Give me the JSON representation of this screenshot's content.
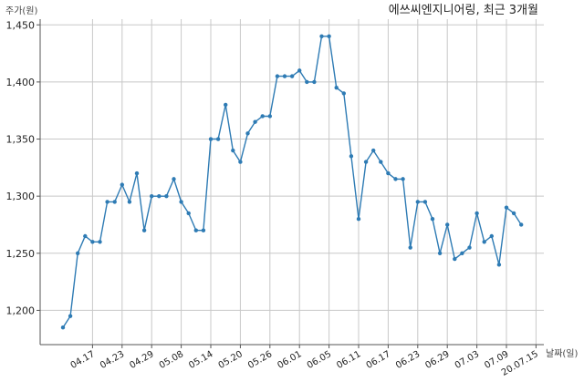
{
  "chart_data": {
    "type": "line",
    "title": "에쓰씨엔지니어링, 최근 3개월",
    "ylabel": "주가(원)",
    "xlabel": "날짜(일)",
    "ylim": [
      1170,
      1455
    ],
    "yticks": [
      1200,
      1250,
      1300,
      1350,
      1400,
      1450
    ],
    "ytick_labels": [
      "1,200",
      "1,250",
      "1,300",
      "1,350",
      "1,400",
      "1,450"
    ],
    "grid": true,
    "color": "#2e7bb4",
    "xticks": [
      {
        "label": "04.17",
        "index": 4
      },
      {
        "label": "04.23",
        "index": 8
      },
      {
        "label": "04.29",
        "index": 12
      },
      {
        "label": "05.08",
        "index": 16
      },
      {
        "label": "05.14",
        "index": 20
      },
      {
        "label": "05.20",
        "index": 24
      },
      {
        "label": "05.26",
        "index": 28
      },
      {
        "label": "06.01",
        "index": 32
      },
      {
        "label": "06.05",
        "index": 36
      },
      {
        "label": "06.11",
        "index": 40
      },
      {
        "label": "06.17",
        "index": 44
      },
      {
        "label": "06.23",
        "index": 48
      },
      {
        "label": "06.29",
        "index": 52
      },
      {
        "label": "07.03",
        "index": 56
      },
      {
        "label": "07.09",
        "index": 60
      },
      {
        "label": "20.07.15",
        "index": 64
      }
    ],
    "series": [
      {
        "values": [
          1185,
          1195,
          1250,
          1265,
          1260,
          1260,
          1295,
          1295,
          1310,
          1295,
          1320,
          1270,
          1300,
          1300,
          1300,
          1315,
          1295,
          1285,
          1270,
          1270,
          1350,
          1350,
          1380,
          1340,
          1330,
          1355,
          1365,
          1370,
          1370,
          1405,
          1405,
          1405,
          1410,
          1400,
          1400,
          1440,
          1440,
          1395,
          1390,
          1335,
          1280,
          1330,
          1340,
          1330,
          1320,
          1315,
          1315,
          1255,
          1295,
          1295,
          1280,
          1250,
          1275,
          1245,
          1250,
          1255,
          1285,
          1260,
          1265,
          1240,
          1290,
          1285,
          1275
        ]
      }
    ]
  }
}
